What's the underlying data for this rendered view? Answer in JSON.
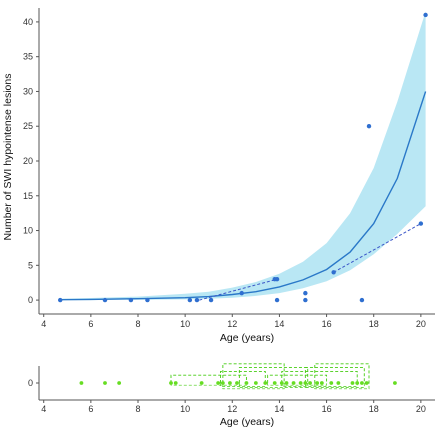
{
  "colors": {
    "fit_line": "#2a78c8",
    "ci_band": "#b9e7f4",
    "point_top": "#2f6fd0",
    "paired_link": "#3a55c8",
    "point_bottom": "#66dd22",
    "link_bottom": "#44cc11",
    "axis": "#555555"
  },
  "chart_data": [
    {
      "type": "scatter",
      "title": "",
      "xlabel": "Age (years)",
      "ylabel": "Number of SWI hypointense lesions",
      "xlim": [
        3.8,
        20.6
      ],
      "ylim": [
        -2,
        42
      ],
      "xticks": [
        "4",
        "6",
        "8",
        "10",
        "12",
        "14",
        "16",
        "18",
        "20"
      ],
      "yticks": [
        "0",
        "5",
        "10",
        "15",
        "20",
        "25",
        "30",
        "35",
        "40"
      ],
      "points": [
        {
          "x": 4.7,
          "y": 0
        },
        {
          "x": 6.6,
          "y": 0
        },
        {
          "x": 7.7,
          "y": 0
        },
        {
          "x": 8.4,
          "y": 0
        },
        {
          "x": 10.2,
          "y": 0
        },
        {
          "x": 10.5,
          "y": 0
        },
        {
          "x": 11.1,
          "y": 0
        },
        {
          "x": 12.4,
          "y": 1
        },
        {
          "x": 13.8,
          "y": 3
        },
        {
          "x": 13.9,
          "y": 3
        },
        {
          "x": 13.9,
          "y": 0
        },
        {
          "x": 15.1,
          "y": 1
        },
        {
          "x": 15.1,
          "y": 0
        },
        {
          "x": 16.3,
          "y": 4
        },
        {
          "x": 17.5,
          "y": 0
        },
        {
          "x": 17.8,
          "y": 25
        },
        {
          "x": 20.0,
          "y": 11
        },
        {
          "x": 20.2,
          "y": 41
        }
      ],
      "paired_segments": [
        {
          "x1": 10.6,
          "y1": 0,
          "x2": 13.9,
          "y2": 3
        },
        {
          "x1": 16.3,
          "y1": 4,
          "x2": 20.0,
          "y2": 11
        }
      ],
      "fit": {
        "x": [
          4.7,
          6,
          8,
          10,
          11,
          12,
          13,
          14,
          15,
          16,
          17,
          18,
          19,
          20.2
        ],
        "y": [
          0.05,
          0.1,
          0.2,
          0.35,
          0.5,
          0.8,
          1.2,
          1.9,
          2.9,
          4.4,
          6.9,
          11,
          17.5,
          30
        ],
        "ci_lower": [
          0,
          0,
          0.05,
          0.1,
          0.2,
          0.35,
          0.6,
          1.0,
          1.7,
          2.7,
          4.3,
          6.6,
          9.5,
          13.5
        ],
        "ci_upper": [
          0.2,
          0.3,
          0.5,
          0.9,
          1.2,
          1.8,
          2.6,
          3.8,
          5.5,
          8.2,
          12.5,
          19,
          28.5,
          41.5
        ]
      }
    },
    {
      "type": "scatter",
      "title": "",
      "xlabel": "Age (years)",
      "ylabel": "",
      "xlim": [
        3.8,
        20.6
      ],
      "xticks": [
        "4",
        "6",
        "8",
        "10",
        "12",
        "14",
        "16",
        "18",
        "20"
      ],
      "yticks": [
        "0"
      ],
      "points_x": [
        5.6,
        6.6,
        7.2,
        9.4,
        9.6,
        10.7,
        11.4,
        11.6,
        11.9,
        12.2,
        12.6,
        13.0,
        13.4,
        13.8,
        14.1,
        14.3,
        14.6,
        14.9,
        15.1,
        15.3,
        15.6,
        15.8,
        16.2,
        16.5,
        17.1,
        17.3,
        17.5,
        17.7,
        18.9
      ],
      "link_groups": [
        {
          "x1": 9.4,
          "x2": 12.6,
          "level": 1
        },
        {
          "x1": 11.5,
          "x2": 13.4,
          "level": 2
        },
        {
          "x1": 13.5,
          "x2": 16.0,
          "level": 1
        },
        {
          "x1": 12.3,
          "x2": 15.2,
          "level": 3
        },
        {
          "x1": 14.1,
          "x2": 17.3,
          "level": 2
        },
        {
          "x1": 11.6,
          "x2": 14.2,
          "level": 4
        },
        {
          "x1": 15.1,
          "x2": 17.6,
          "level": 3
        },
        {
          "x1": 15.5,
          "x2": 17.8,
          "level": 4
        }
      ]
    }
  ]
}
